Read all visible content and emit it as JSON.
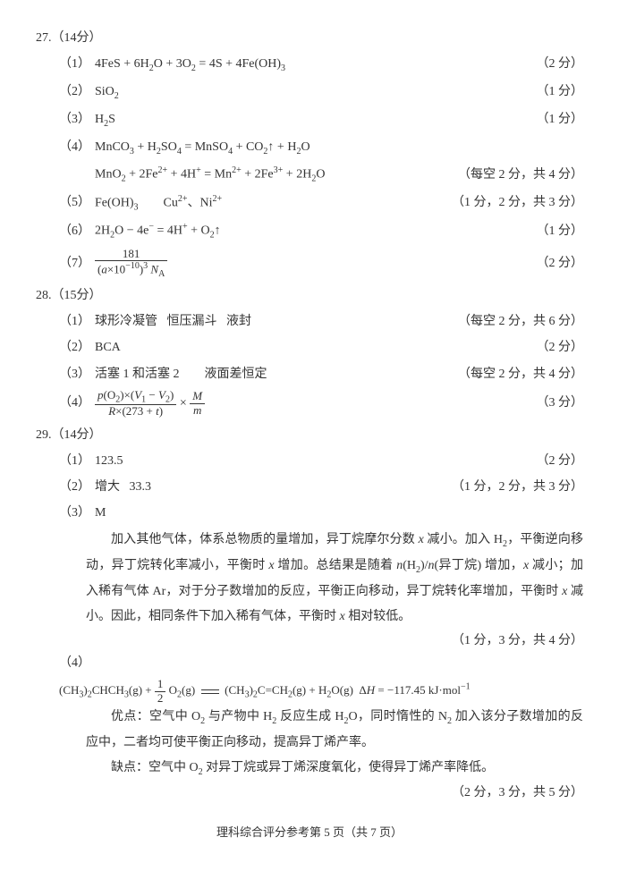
{
  "page": {
    "footer": "理科综合评分参考第 5 页（共 7 页）",
    "text_color": "#333333",
    "background_color": "#ffffff",
    "base_fontsize": 14
  },
  "q27": {
    "header": "27.（14分）",
    "items": [
      {
        "label": "（1）",
        "content_html": "4FeS + 6H<span class='sub'>2</span>O + 3O<span class='sub'>2</span> = 4S + 4Fe(OH)<span class='sub'>3</span>",
        "score": "（2 分）"
      },
      {
        "label": "（2）",
        "content_html": "SiO<span class='sub'>2</span>",
        "score": "（1 分）"
      },
      {
        "label": "（3）",
        "content_html": "H<span class='sub'>2</span>S",
        "score": "（1 分）"
      },
      {
        "label": "（4）",
        "content_html": "MnCO<span class='sub'>3</span> + H<span class='sub'>2</span>SO<span class='sub'>4</span> = MnSO<span class='sub'>4</span> + CO<span class='sub'>2</span>↑ + H<span class='sub'>2</span>O",
        "score": ""
      },
      {
        "label": "",
        "content_html": "MnO<span class='sub'>2</span> + 2Fe<span class='sup'>2+</span> + 4H<span class='sup'>+</span> = Mn<span class='sup'>2+</span> + 2Fe<span class='sup'>3+</span> + 2H<span class='sub'>2</span>O",
        "score": "（每空 2 分，共 4 分）"
      },
      {
        "label": "（5）",
        "content_html": "Fe(OH)<span class='sub'>3</span>&nbsp;&nbsp;&nbsp;&nbsp;&nbsp;&nbsp;&nbsp;&nbsp;Cu<span class='sup'>2+</span>、Ni<span class='sup'>2+</span>",
        "score": "（1 分，2 分，共 3 分）"
      },
      {
        "label": "（6）",
        "content_html": "2H<span class='sub'>2</span>O − 4e<span class='sup'>−</span> = 4H<span class='sup'>+</span> + O<span class='sub'>2</span>↑",
        "score": "（1 分）"
      }
    ],
    "item7": {
      "label": "（7）",
      "frac_num": "181",
      "frac_den_html": "(<i>a</i>×10<span class='sup'>−10</span>)<span class='sup'>3</span> <i>N</i><span class='sub'>A</span>",
      "score": "（2 分）"
    }
  },
  "q28": {
    "header": "28.（15分）",
    "items": [
      {
        "label": "（1）",
        "content_html": "球形冷凝管&nbsp;&nbsp;&nbsp;恒压漏斗&nbsp;&nbsp;&nbsp;液封",
        "score": "（每空 2 分，共 6 分）"
      },
      {
        "label": "（2）",
        "content_html": "BCA",
        "score": "（2 分）"
      },
      {
        "label": "（3）",
        "content_html": "活塞 1 和活塞 2&nbsp;&nbsp;&nbsp;&nbsp;&nbsp;&nbsp;&nbsp;&nbsp;液面差恒定",
        "score": "（每空 2 分，共 4 分）"
      }
    ],
    "item4": {
      "label": "（4）",
      "frac1_num_html": "<i>p</i>(O<span class='sub'>2</span>)×(<i>V</i><span class='sub'>1</span> − <i>V</i><span class='sub'>2</span>)",
      "frac1_den_html": "<i>R</i>×(273 + <i>t</i>)",
      "frac2_num_html": "<i>M</i>",
      "frac2_den_html": "<i>m</i>",
      "score": "（3 分）"
    }
  },
  "q29": {
    "header": "29.（14分）",
    "items": [
      {
        "label": "（1）",
        "content_html": "123.5",
        "score": "（2 分）"
      },
      {
        "label": "（2）",
        "content_html": "增大&nbsp;&nbsp;&nbsp;33.3",
        "score": "（1 分，2 分，共 3 分）"
      },
      {
        "label": "（3）",
        "content_html": "M",
        "score": ""
      }
    ],
    "explain3_html": "加入其他气体，体系总物质的量增加，异丁烷摩尔分数 <i>x</i> 减小。加入 H<span class='sub'>2</span>，平衡逆向移动，异丁烷转化率减小，平衡时 <i>x</i> 增加。总结果是随着 <i>n</i>(H<span class='sub'>2</span>)/<i>n</i>(异丁烷) 增加，<i>x</i> 减小；加入稀有气体 Ar，对于分子数增加的反应，平衡正向移动，异丁烷转化率增加，平衡时 <i>x</i> 减小。因此，相同条件下加入稀有气体，平衡时 <i>x</i> 相对较低。",
    "score3": "（1 分，3 分，共 4 分）",
    "item4_label": "（4）",
    "eq4_html": "(CH<span class='sub'>3</span>)<span class='sub'>2</span>CHCH<span class='sub'>3</span>(g) + <span class='frac'><span class='num'>1</span><span class='den'>2</span></span> O<span class='sub'>2</span>(g) &nbsp;<span style='position:relative'><span style='border-top:1px solid #333;border-bottom:1px solid #333;display:inline-block;width:20px;height:3px;vertical-align:middle'></span></span>&nbsp; (CH<span class='sub'>3</span>)<span class='sub'>2</span>C=CH<span class='sub'>2</span>(g) + H<span class='sub'>2</span>O(g)&nbsp;&nbsp;Δ<i>H</i> = −117.45 kJ·mol<span class='sup'>−1</span>",
    "adv_html": "优点：空气中 O<span class='sub'>2</span> 与产物中 H<span class='sub'>2</span> 反应生成 H<span class='sub'>2</span>O，同时惰性的 N<span class='sub'>2</span> 加入该分子数增加的反应中，二者均可使平衡正向移动，提高异丁烯产率。",
    "disadv_html": "缺点：空气中 O<span class='sub'>2</span> 对异丁烷或异丁烯深度氧化，使得异丁烯产率降低。",
    "score4": "（2 分，3 分，共 5 分）"
  }
}
